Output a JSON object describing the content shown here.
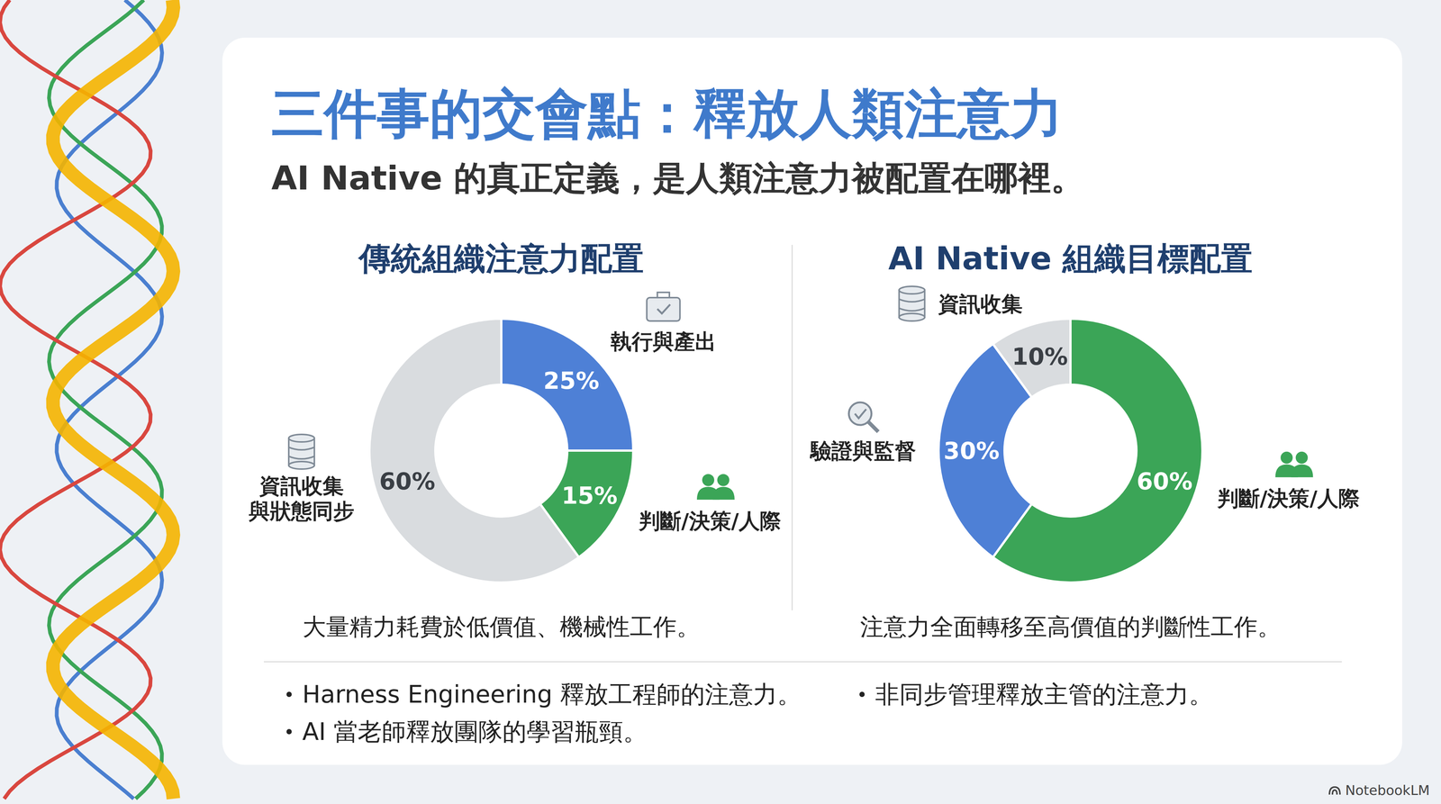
{
  "title": "三件事的交會點：釋放人類注意力",
  "subtitle": "AI Native 的真正定義，是人類注意力被配置在哪裡。",
  "chart_data": [
    {
      "type": "pie",
      "title": "傳統組織注意力配置",
      "categories": [
        "執行與產出",
        "判斷/決策/人際",
        "資訊收集與狀態同步"
      ],
      "values": [
        25,
        15,
        60
      ],
      "value_labels": [
        "25%",
        "15%",
        "60%"
      ],
      "colors": [
        "#4e80d6",
        "#3ba557",
        "#d9dcdf"
      ],
      "data_labels": true,
      "caption": "大量精力耗費於低價值、機械性工作。"
    },
    {
      "type": "pie",
      "title": "AI Native 組織目標配置",
      "categories": [
        "判斷/決策/人際",
        "驗證與監督",
        "資訊收集"
      ],
      "values": [
        60,
        30,
        10
      ],
      "value_labels": [
        "60%",
        "30%",
        "10%"
      ],
      "colors": [
        "#3ba557",
        "#4e80d6",
        "#d9dcdf"
      ],
      "data_labels": true,
      "caption": "注意力全面轉移至高價值的判斷性工作。"
    }
  ],
  "bullets": [
    "Harness Engineering 釋放工程師的注意力。",
    "非同步管理釋放主管的注意力。",
    "AI 當老師釋放團隊的學習瓶頸。"
  ],
  "watermark": "NotebookLM"
}
